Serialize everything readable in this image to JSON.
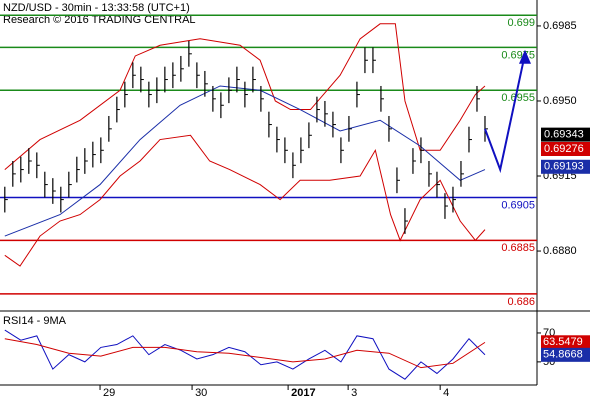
{
  "chart_data": {
    "type": "ohlc",
    "title": "NZD/USD - 30min - 13:33:58 (UTC+1)",
    "subtitle": "Research © 2016 TRADING CENTRAL",
    "ylim": [
      0.68525,
      0.69971
    ],
    "xlim": [
      -0.6,
      66.5
    ],
    "yticks": [
      0.6985,
      {
        "value": 0.695,
        "label": "0.6950"
      },
      0.6915,
      {
        "value": 0.688,
        "label": "0.6880"
      }
    ],
    "xticks": [
      {
        "value": 11.9,
        "label": "29"
      },
      {
        "value": 23.4,
        "label": "30"
      },
      {
        "value": 35.4,
        "label": "2017"
      },
      {
        "value": 42.9,
        "label": "3"
      },
      {
        "value": 54.4,
        "label": "4"
      }
    ],
    "bar_color": "#000000",
    "high": [
      0.691,
      0.6922,
      0.6924,
      0.6928,
      0.6926,
      0.6917,
      0.6914,
      0.691,
      0.6917,
      0.6924,
      0.6928,
      0.6931,
      0.6933,
      0.6943,
      0.6952,
      0.6959,
      0.6968,
      0.6966,
      0.6959,
      0.6961,
      0.6966,
      0.6968,
      0.6971,
      0.6978,
      0.6968,
      0.6964,
      0.6957,
      0.6954,
      0.6961,
      0.6966,
      0.6959,
      0.6966,
      0.6957,
      0.6945,
      0.6938,
      0.6933,
      0.6926,
      0.6933,
      0.694,
      0.6952,
      0.695,
      0.6945,
      0.6933,
      0.6943,
      0.6959,
      0.6975,
      0.6975,
      0.6957,
      0.6943,
      0.6919,
      0.69,
      0.6928,
      0.6933,
      0.6922,
      0.6917,
      0.6907,
      0.691,
      0.6922,
      0.6938,
      0.6957,
      0.6943
    ],
    "low": [
      0.6898,
      0.691,
      0.6912,
      0.6916,
      0.6914,
      0.6905,
      0.6902,
      0.6898,
      0.6905,
      0.6912,
      0.6916,
      0.6919,
      0.6921,
      0.6931,
      0.694,
      0.6947,
      0.6956,
      0.6954,
      0.6947,
      0.6949,
      0.6954,
      0.6956,
      0.6959,
      0.6966,
      0.6956,
      0.6952,
      0.6945,
      0.6942,
      0.6949,
      0.6954,
      0.6947,
      0.6954,
      0.6945,
      0.6933,
      0.6926,
      0.6921,
      0.6914,
      0.6921,
      0.6928,
      0.694,
      0.6938,
      0.6933,
      0.6921,
      0.6931,
      0.6947,
      0.6963,
      0.6963,
      0.6945,
      0.6931,
      0.6907,
      0.6888,
      0.6916,
      0.6921,
      0.691,
      0.6905,
      0.6895,
      0.6898,
      0.691,
      0.6926,
      0.6945,
      0.6931
    ],
    "close": [
      0.6904,
      0.6916,
      0.6918,
      0.6922,
      0.692,
      0.6911,
      0.6908,
      0.6904,
      0.6911,
      0.6918,
      0.6922,
      0.6925,
      0.6927,
      0.6937,
      0.6946,
      0.6953,
      0.6962,
      0.696,
      0.6953,
      0.6955,
      0.696,
      0.6962,
      0.6965,
      0.6972,
      0.6962,
      0.6958,
      0.6951,
      0.6948,
      0.6955,
      0.696,
      0.6953,
      0.696,
      0.6951,
      0.6939,
      0.6932,
      0.6927,
      0.692,
      0.6927,
      0.6934,
      0.6946,
      0.6944,
      0.6939,
      0.6927,
      0.6937,
      0.6953,
      0.6969,
      0.6969,
      0.6951,
      0.6937,
      0.6913,
      0.6894,
      0.6922,
      0.6927,
      0.6916,
      0.6911,
      0.6901,
      0.6904,
      0.6916,
      0.6932,
      0.6951,
      0.6937
    ],
    "overlays": [
      {
        "color": "#d00000",
        "x": [
          0,
          4.4,
          9.4,
          14.4,
          16.3,
          19.4,
          24.4,
          29.4,
          31.9,
          33.8,
          35.7,
          38.2,
          41.9,
          44.4,
          46.9,
          48.8,
          50,
          51.9,
          54.4,
          56.9,
          58.8,
          60
        ],
        "values": [
          0.6918,
          0.6932,
          0.6941,
          0.6955,
          0.6971,
          0.6976,
          0.6979,
          0.6976,
          0.6969,
          0.695,
          0.6946,
          0.6946,
          0.6962,
          0.6979,
          0.6986,
          0.6986,
          0.695,
          0.6927,
          0.6927,
          0.6941,
          0.6953,
          0.6957
        ]
      },
      {
        "color": "#d00000",
        "x": [
          0,
          1.9,
          4.4,
          6.9,
          9.4,
          11.9,
          14.4,
          16.9,
          19.4,
          23.2,
          25.6,
          28.1,
          31.9,
          34.4,
          36.9,
          40.6,
          44.4,
          46.3,
          48.2,
          49.4,
          51.9,
          54.4,
          56.9,
          58.8,
          60
        ],
        "values": [
          0.6878,
          0.6873,
          0.6887,
          0.6894,
          0.6897,
          0.6904,
          0.6915,
          0.6922,
          0.6932,
          0.6934,
          0.6922,
          0.6918,
          0.6911,
          0.6904,
          0.6913,
          0.6913,
          0.6915,
          0.6927,
          0.6897,
          0.6885,
          0.6904,
          0.6913,
          0.6894,
          0.6885,
          0.689
        ]
      },
      {
        "color": "#1a2ea8",
        "x": [
          0,
          6.9,
          11.9,
          16.9,
          21.9,
          26.9,
          31.9,
          36.9,
          41.9,
          46.9,
          51.9,
          56.9,
          60
        ],
        "values": [
          0.6887,
          0.6897,
          0.6911,
          0.6932,
          0.6948,
          0.6957,
          0.6955,
          0.6946,
          0.6936,
          0.6941,
          0.6929,
          0.6913,
          0.6918
        ]
      }
    ],
    "forecast": {
      "color": "#1010c0",
      "x": [
        60,
        61.9,
        65
      ],
      "values": [
        0.6937,
        0.6918,
        0.6972
      ]
    },
    "levels": [
      {
        "value": 0.699,
        "color": "#1a8a1a"
      },
      {
        "value": 0.6975,
        "color": "#1a8a1a"
      },
      {
        "value": 0.6955,
        "color": "#1a8a1a"
      },
      {
        "value": 0.6905,
        "color": "#1010c0"
      },
      {
        "value": 0.6885,
        "color": "#d00000"
      },
      {
        "value": 0.686,
        "color": "#d00000"
      }
    ],
    "price_tags": [
      {
        "value": 0.69343,
        "color": "#000000"
      },
      {
        "value": 0.69276,
        "color": "#d00000"
      },
      {
        "value": 0.69193,
        "color": "#1a2ea8"
      }
    ],
    "rsi": {
      "title": "RSI14 - 9MA",
      "ylim": [
        34,
        84.5
      ],
      "yticks": [
        70,
        50
      ],
      "series": [
        {
          "color": "#1010c0",
          "x": [
            0,
            2,
            4,
            6,
            8,
            10,
            12,
            14,
            16,
            18,
            20,
            22,
            24,
            26,
            28,
            30,
            32,
            34,
            36,
            38,
            40,
            42,
            44,
            46,
            48,
            50,
            52,
            54,
            56,
            58,
            60
          ],
          "values": [
            72,
            65,
            68,
            45,
            55,
            50,
            60,
            62,
            68,
            55,
            62,
            58,
            52,
            55,
            60,
            57,
            48,
            50,
            45,
            52,
            58,
            50,
            68,
            66,
            45,
            38,
            50,
            42,
            52,
            66,
            54.9
          ]
        },
        {
          "color": "#d00000",
          "x": [
            0,
            4,
            8,
            12,
            16,
            20,
            24,
            28,
            32,
            36,
            40,
            44,
            48,
            52,
            56,
            60
          ],
          "values": [
            66,
            62,
            56,
            54,
            60,
            60,
            57,
            56,
            53,
            50,
            52,
            58,
            56,
            46,
            49,
            63.5
          ]
        }
      ],
      "tags": [
        {
          "value": 63.5479,
          "color": "#d00000"
        },
        {
          "value": 54.8668,
          "color": "#1a2ea8"
        }
      ]
    }
  }
}
